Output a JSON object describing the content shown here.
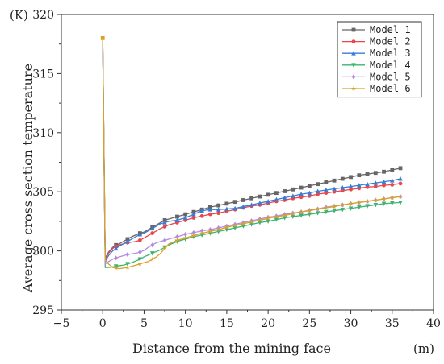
{
  "chart_data": {
    "type": "line",
    "title": "",
    "xlabel": "Distance from the mining face",
    "ylabel": "Average cross section temperature",
    "x_unit": "(m)",
    "y_unit": "(K)",
    "xlim": [
      -5,
      40
    ],
    "ylim": [
      295,
      320
    ],
    "x_ticks": [
      -5,
      0,
      5,
      10,
      15,
      20,
      25,
      30,
      35,
      40
    ],
    "y_ticks": [
      295,
      300,
      305,
      310,
      315,
      320
    ],
    "grid": false,
    "legend_position": "top-right",
    "start_point": {
      "x": 0,
      "y": 318
    },
    "series": [
      {
        "name": "Model 1",
        "color": "#666666",
        "marker": "square",
        "x": [
          0,
          0.3,
          0.7,
          1.2,
          1.6,
          2,
          2.5,
          3,
          3.5,
          4,
          4.5,
          5,
          5.5,
          6,
          6.5,
          7,
          7.5,
          8,
          9,
          10,
          11,
          12,
          13,
          14,
          15,
          16,
          17,
          18,
          19,
          20,
          21,
          22,
          23,
          24,
          25,
          26,
          27,
          28,
          29,
          30,
          31,
          32,
          33,
          34,
          35,
          36
        ],
        "y": [
          318,
          299.4,
          299.9,
          300.3,
          300.5,
          300.6,
          300.8,
          301.0,
          301.2,
          301.35,
          301.5,
          301.6,
          301.8,
          302.0,
          302.2,
          302.4,
          302.6,
          302.7,
          302.9,
          303.1,
          303.3,
          303.5,
          303.7,
          303.85,
          304.0,
          304.15,
          304.3,
          304.45,
          304.6,
          304.75,
          304.9,
          305.05,
          305.2,
          305.35,
          305.5,
          305.65,
          305.8,
          305.95,
          306.1,
          306.25,
          306.4,
          306.5,
          306.6,
          306.7,
          306.85,
          307.0
        ]
      },
      {
        "name": "Model 2",
        "color": "#e8474b",
        "marker": "circle",
        "x": [
          0,
          0.3,
          0.7,
          1.2,
          1.6,
          2,
          2.5,
          3,
          3.5,
          4,
          4.5,
          5,
          5.5,
          6,
          6.5,
          7,
          7.5,
          8,
          9,
          10,
          11,
          12,
          13,
          14,
          15,
          16,
          17,
          18,
          19,
          20,
          21,
          22,
          23,
          24,
          25,
          26,
          27,
          28,
          29,
          30,
          31,
          32,
          33,
          34,
          35,
          36
        ],
        "y": [
          318,
          299.3,
          299.8,
          300.2,
          300.4,
          300.5,
          300.6,
          300.7,
          300.75,
          300.8,
          300.9,
          301.1,
          301.3,
          301.5,
          301.7,
          301.9,
          302.05,
          302.2,
          302.4,
          302.6,
          302.8,
          302.95,
          303.1,
          303.2,
          303.35,
          303.5,
          303.65,
          303.8,
          303.9,
          304.05,
          304.2,
          304.3,
          304.45,
          304.55,
          304.65,
          304.8,
          304.9,
          305.0,
          305.1,
          305.2,
          305.3,
          305.4,
          305.45,
          305.55,
          305.6,
          305.7
        ]
      },
      {
        "name": "Model 3",
        "color": "#3a7bd5",
        "marker": "triangle-up",
        "x": [
          0,
          0.3,
          0.7,
          1.2,
          1.6,
          2,
          2.5,
          3,
          3.5,
          4,
          4.5,
          5,
          5.5,
          6,
          6.5,
          7,
          7.5,
          8,
          9,
          10,
          11,
          12,
          13,
          14,
          15,
          16,
          17,
          18,
          19,
          20,
          21,
          22,
          23,
          24,
          25,
          26,
          27,
          28,
          29,
          30,
          31,
          32,
          33,
          34,
          35,
          36
        ],
        "y": [
          318,
          299.1,
          299.6,
          300.0,
          300.2,
          300.4,
          300.6,
          300.8,
          301.0,
          301.2,
          301.4,
          301.5,
          301.7,
          301.9,
          302.1,
          302.3,
          302.4,
          302.5,
          302.6,
          302.8,
          303.1,
          303.4,
          303.5,
          303.5,
          303.55,
          303.6,
          303.75,
          303.9,
          304.05,
          304.2,
          304.35,
          304.5,
          304.65,
          304.8,
          304.9,
          305.05,
          305.15,
          305.25,
          305.35,
          305.45,
          305.55,
          305.65,
          305.75,
          305.85,
          305.95,
          306.1
        ]
      },
      {
        "name": "Model 4",
        "color": "#3cb371",
        "marker": "triangle-down",
        "x": [
          0,
          0.3,
          0.7,
          1.2,
          1.6,
          2,
          2.5,
          3,
          3.5,
          4,
          4.5,
          5,
          5.5,
          6,
          6.5,
          7,
          7.5,
          8,
          9,
          10,
          11,
          12,
          13,
          14,
          15,
          16,
          17,
          18,
          19,
          20,
          21,
          22,
          23,
          24,
          25,
          26,
          27,
          28,
          29,
          30,
          31,
          32,
          33,
          34,
          35,
          36
        ],
        "y": [
          318,
          298.6,
          298.6,
          298.65,
          298.7,
          298.75,
          298.8,
          298.9,
          299.0,
          299.15,
          299.3,
          299.5,
          299.65,
          299.8,
          299.95,
          300.1,
          300.3,
          300.5,
          300.8,
          301.0,
          301.2,
          301.35,
          301.5,
          301.65,
          301.8,
          301.95,
          302.1,
          302.25,
          302.4,
          302.5,
          302.65,
          302.8,
          302.9,
          303.0,
          303.1,
          303.2,
          303.3,
          303.4,
          303.5,
          303.6,
          303.7,
          303.8,
          303.9,
          304.0,
          304.05,
          304.1
        ]
      },
      {
        "name": "Model 5",
        "color": "#b58be0",
        "marker": "diamond",
        "x": [
          0,
          0.3,
          0.7,
          1.2,
          1.6,
          2,
          2.5,
          3,
          3.5,
          4,
          4.5,
          5,
          5.5,
          6,
          6.5,
          7,
          7.5,
          8,
          9,
          10,
          11,
          12,
          13,
          14,
          15,
          16,
          17,
          18,
          19,
          20,
          21,
          22,
          23,
          24,
          25,
          26,
          27,
          28,
          29,
          30,
          31,
          32,
          33,
          34,
          35,
          36
        ],
        "y": [
          318,
          298.9,
          299.1,
          299.3,
          299.4,
          299.5,
          299.6,
          299.7,
          299.75,
          299.8,
          299.9,
          300.05,
          300.3,
          300.5,
          300.7,
          300.8,
          300.9,
          301.0,
          301.2,
          301.4,
          301.55,
          301.7,
          301.8,
          301.95,
          302.1,
          302.25,
          302.4,
          302.55,
          302.7,
          302.85,
          302.95,
          303.1,
          303.2,
          303.3,
          303.45,
          303.55,
          303.7,
          303.8,
          303.9,
          304.0,
          304.1,
          304.2,
          304.3,
          304.4,
          304.5,
          304.6
        ]
      },
      {
        "name": "Model 6",
        "color": "#d9a227",
        "marker": "star",
        "x": [
          0,
          0.3,
          0.7,
          1.2,
          1.6,
          2,
          2.5,
          3,
          3.5,
          4,
          4.5,
          5,
          5.5,
          6,
          6.5,
          7,
          7.5,
          8,
          9,
          10,
          11,
          12,
          13,
          14,
          15,
          16,
          17,
          18,
          19,
          20,
          21,
          22,
          23,
          24,
          25,
          26,
          27,
          28,
          29,
          30,
          31,
          32,
          33,
          34,
          35,
          36
        ],
        "y": [
          318,
          299.2,
          298.9,
          298.6,
          298.55,
          298.5,
          298.55,
          298.6,
          298.7,
          298.8,
          298.9,
          299.0,
          299.1,
          299.3,
          299.5,
          299.8,
          300.2,
          300.6,
          300.9,
          301.1,
          301.3,
          301.5,
          301.65,
          301.8,
          302.0,
          302.15,
          302.3,
          302.45,
          302.6,
          302.75,
          302.9,
          303.0,
          303.15,
          303.3,
          303.4,
          303.55,
          303.65,
          303.75,
          303.9,
          304.0,
          304.1,
          304.2,
          304.3,
          304.4,
          304.5,
          304.6
        ]
      }
    ]
  }
}
